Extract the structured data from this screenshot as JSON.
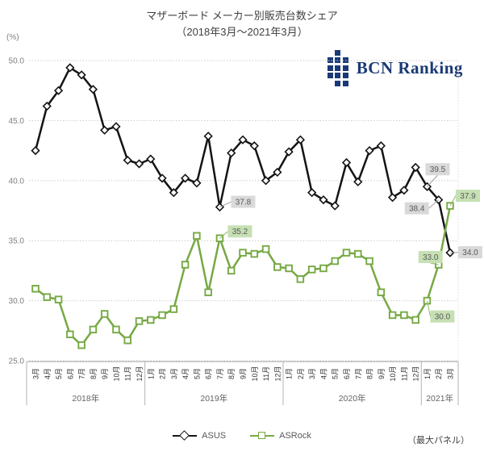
{
  "header": {
    "title_line1": "マザーボード メーカー別販売台数シェア",
    "title_line2": "（2018年3月～2021年3月）",
    "unit_label": "(%)",
    "logo_text": "BCN Ranking"
  },
  "chart_data": {
    "type": "line",
    "title": "マザーボード メーカー別販売台数シェア（2018年3月～2021年3月）",
    "ylabel": "(%)",
    "ylim": [
      25.0,
      50.0
    ],
    "ytick_interval": 5,
    "ytick_labels": [
      "25.0",
      "30.0",
      "35.0",
      "40.0",
      "45.0",
      "50.0"
    ],
    "grid": true,
    "legend_position": "bottom",
    "categories": [
      "3月",
      "4月",
      "5月",
      "6月",
      "7月",
      "8月",
      "9月",
      "10月",
      "11月",
      "12月",
      "1月",
      "2月",
      "3月",
      "4月",
      "5月",
      "6月",
      "7月",
      "8月",
      "9月",
      "10月",
      "11月",
      "12月",
      "1月",
      "2月",
      "3月",
      "4月",
      "5月",
      "6月",
      "7月",
      "8月",
      "9月",
      "10月",
      "11月",
      "12月",
      "1月",
      "2月",
      "3月"
    ],
    "year_groups": [
      {
        "label": "2018年",
        "months": 10
      },
      {
        "label": "2019年",
        "months": 12
      },
      {
        "label": "2020年",
        "months": 12
      },
      {
        "label": "2021年",
        "months": 3
      }
    ],
    "series": [
      {
        "name": "ASUS",
        "marker": "diamond",
        "color": "#141414",
        "values": [
          42.5,
          46.2,
          47.5,
          49.4,
          48.8,
          47.6,
          44.2,
          44.5,
          41.7,
          41.4,
          41.8,
          40.2,
          39.0,
          40.2,
          39.8,
          43.7,
          37.8,
          42.3,
          43.4,
          42.9,
          40.0,
          40.7,
          42.4,
          43.4,
          39.0,
          38.4,
          37.9,
          41.5,
          39.9,
          42.5,
          42.9,
          38.6,
          39.2,
          41.1,
          39.5,
          38.4,
          34.0
        ]
      },
      {
        "name": "ASRock",
        "marker": "square",
        "color": "#76a944",
        "values": [
          31.0,
          30.3,
          30.1,
          27.2,
          26.3,
          27.6,
          28.9,
          27.6,
          26.7,
          28.3,
          28.4,
          28.8,
          29.3,
          33.0,
          35.4,
          30.7,
          35.2,
          32.5,
          34.0,
          33.9,
          34.3,
          32.8,
          32.7,
          31.8,
          32.6,
          32.7,
          33.3,
          34.0,
          33.9,
          33.3,
          30.7,
          28.8,
          28.8,
          28.4,
          30.0,
          33.0,
          37.9
        ]
      }
    ],
    "label_bg": {
      "ASUS": "#d9d9d9",
      "ASRock": "#c6e0b4"
    },
    "annotations": [
      {
        "series": "ASUS",
        "index": 16,
        "label": "37.8"
      },
      {
        "series": "ASRock",
        "index": 16,
        "label": "35.2"
      },
      {
        "series": "ASUS",
        "index": 34,
        "label": "39.5"
      },
      {
        "series": "ASUS",
        "index": 35,
        "label": "38.4"
      },
      {
        "series": "ASUS",
        "index": 36,
        "label": "34.0"
      },
      {
        "series": "ASRock",
        "index": 34,
        "label": "30.0"
      },
      {
        "series": "ASRock",
        "index": 35,
        "label": "33.0"
      },
      {
        "series": "ASRock",
        "index": 36,
        "label": "37.9"
      }
    ]
  },
  "legend": {
    "items": [
      {
        "label": "ASUS"
      },
      {
        "label": "ASRock"
      }
    ]
  },
  "footer": {
    "note": "（最大パネル）"
  }
}
